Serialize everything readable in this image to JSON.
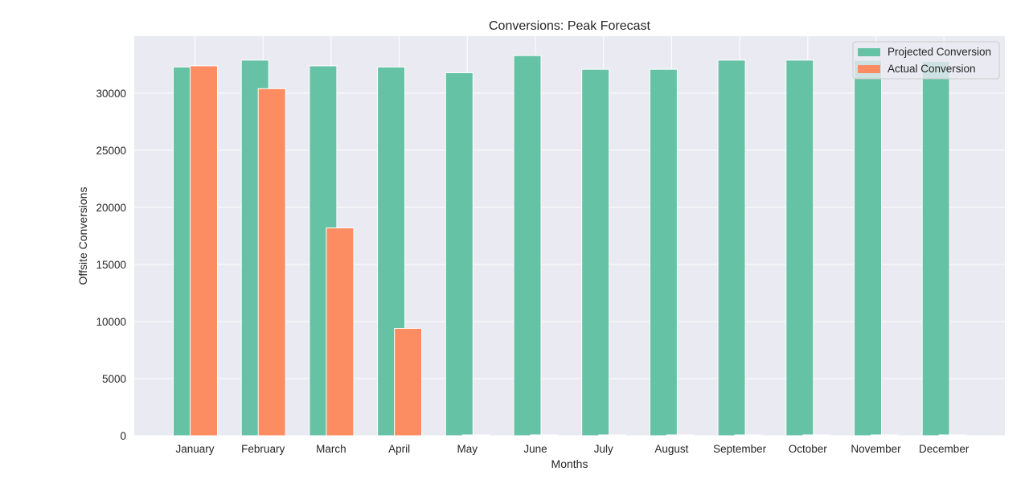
{
  "chart_data": {
    "type": "bar",
    "title": "Conversions: Peak Forecast",
    "xlabel": "Months",
    "ylabel": "Offsite Conversions",
    "categories": [
      "January",
      "February",
      "March",
      "April",
      "May",
      "June",
      "July",
      "August",
      "September",
      "October",
      "November",
      "December"
    ],
    "series": [
      {
        "name": "Projected Conversion",
        "color": "#66c2a5",
        "values": [
          32300,
          32900,
          32400,
          32300,
          31800,
          33300,
          32100,
          32100,
          32900,
          32900,
          32900,
          32800
        ]
      },
      {
        "name": "Actual Conversion",
        "color": "#fc8d62",
        "values": [
          32400,
          30400,
          18200,
          9400,
          0,
          0,
          0,
          0,
          0,
          0,
          0,
          0
        ]
      }
    ],
    "ylim": [
      0,
      35000
    ],
    "yticks": [
      0,
      5000,
      10000,
      15000,
      20000,
      25000,
      30000
    ],
    "grid": true,
    "legend_position": "top-right",
    "background": "#eaeaf2",
    "grid_color": "#ffffff"
  }
}
